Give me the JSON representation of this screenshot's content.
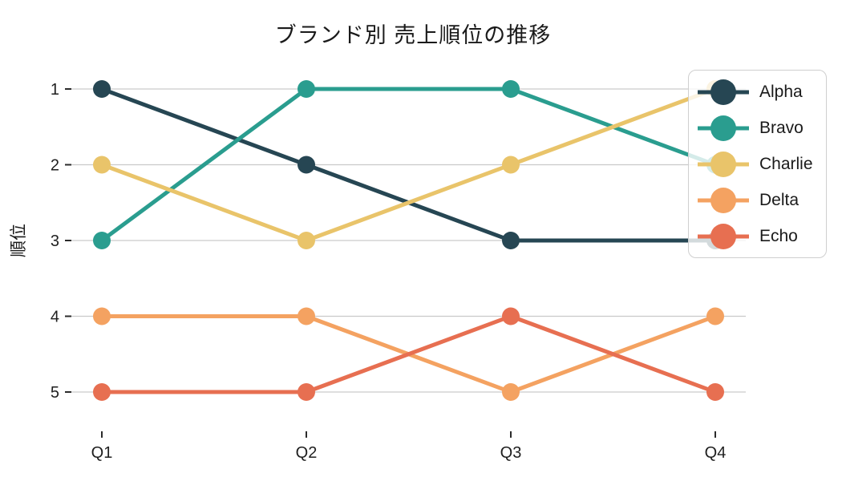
{
  "chart_data": {
    "type": "line",
    "subtype": "bump-rank-chart",
    "title": "ブランド別 売上順位の推移",
    "xlabel": "",
    "ylabel": "順位",
    "categories": [
      "Q1",
      "Q2",
      "Q3",
      "Q4"
    ],
    "series": [
      {
        "name": "Alpha",
        "color": "#264653",
        "values": [
          1,
          2,
          3,
          3
        ]
      },
      {
        "name": "Bravo",
        "color": "#2a9d8f",
        "values": [
          3,
          1,
          1,
          2
        ]
      },
      {
        "name": "Charlie",
        "color": "#e9c46a",
        "values": [
          2,
          3,
          2,
          1
        ]
      },
      {
        "name": "Delta",
        "color": "#f4a261",
        "values": [
          4,
          4,
          5,
          4
        ]
      },
      {
        "name": "Echo",
        "color": "#e76f51",
        "values": [
          5,
          5,
          4,
          5
        ]
      }
    ],
    "y_ticks": [
      "1",
      "2",
      "3",
      "4",
      "5"
    ],
    "ylim": [
      5.5,
      0.5
    ],
    "y_axis_inverted": true,
    "grid": "horizontal",
    "legend_position": "upper right"
  },
  "style": {
    "background": "#ffffff",
    "grid_color": "#c9c9c9",
    "tick_color": "#2b2b2b",
    "text_color": "#1f1f1f",
    "legend_background": "rgba(255,255,255,0.8)",
    "legend_border": "#cfcfcf"
  }
}
